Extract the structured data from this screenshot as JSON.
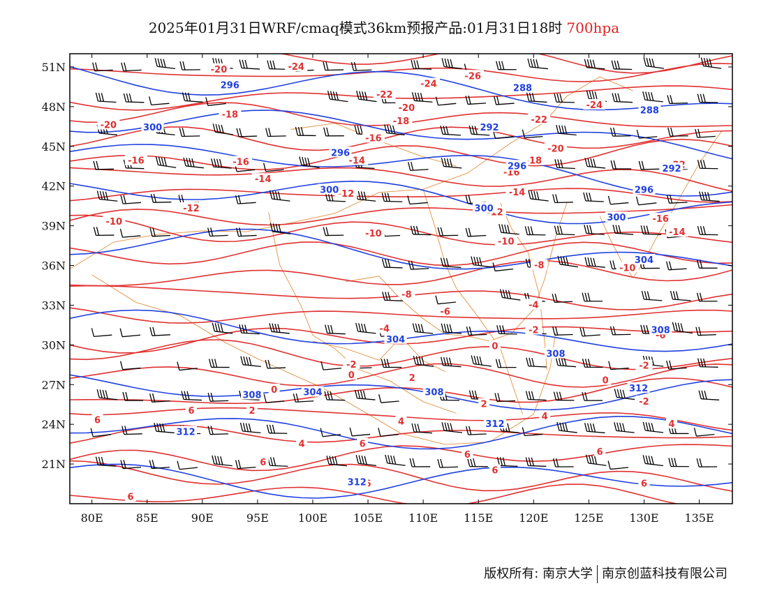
{
  "title": {
    "text": "2025年01月31日WRF/cmaq模式36km预报产品:01月31日18时",
    "level": "700hpa"
  },
  "colors": {
    "temperature": "#e03030",
    "height": "#2040e0",
    "border": "#e09040",
    "wind": "#000000"
  },
  "axes": {
    "lon": {
      "range": [
        78,
        138
      ],
      "ticks": [
        80,
        85,
        90,
        95,
        100,
        105,
        110,
        115,
        120,
        125,
        130,
        135
      ],
      "labels": [
        "80E",
        "85E",
        "90E",
        "95E",
        "100E",
        "105E",
        "110E",
        "115E",
        "120E",
        "125E",
        "130E",
        "135E"
      ]
    },
    "lat": {
      "range": [
        18,
        52
      ],
      "ticks": [
        21,
        24,
        27,
        30,
        33,
        36,
        39,
        42,
        45,
        48,
        51
      ],
      "labels": [
        "21N",
        "24N",
        "27N",
        "30N",
        "33N",
        "36N",
        "39N",
        "42N",
        "45N",
        "48N",
        "51N"
      ]
    }
  },
  "temperature_labels": [
    {
      "text": "-20",
      "lon": 91.5,
      "lat": 50.8
    },
    {
      "text": "-24",
      "lon": 98.5,
      "lat": 51.0
    },
    {
      "text": "-26",
      "lon": 114.5,
      "lat": 50.3
    },
    {
      "text": "-22",
      "lon": 106.5,
      "lat": 48.9
    },
    {
      "text": "-24",
      "lon": 110.5,
      "lat": 49.7
    },
    {
      "text": "-20",
      "lon": 81.5,
      "lat": 46.6
    },
    {
      "text": "-18",
      "lon": 92.5,
      "lat": 47.4
    },
    {
      "text": "-20",
      "lon": 108.5,
      "lat": 47.9
    },
    {
      "text": "-18",
      "lon": 108.0,
      "lat": 46.9
    },
    {
      "text": "-22",
      "lon": 120.5,
      "lat": 47.0
    },
    {
      "text": "-24",
      "lon": 125.5,
      "lat": 48.1
    },
    {
      "text": "-16",
      "lon": 84.0,
      "lat": 43.9
    },
    {
      "text": "-16",
      "lon": 93.5,
      "lat": 43.8
    },
    {
      "text": "-16",
      "lon": 105.5,
      "lat": 45.6
    },
    {
      "text": "-14",
      "lon": 104.0,
      "lat": 43.9
    },
    {
      "text": "-20",
      "lon": 122.0,
      "lat": 44.8
    },
    {
      "text": "-18",
      "lon": 120.0,
      "lat": 43.9
    },
    {
      "text": "-22",
      "lon": 133.0,
      "lat": 43.6
    },
    {
      "text": "-14",
      "lon": 95.5,
      "lat": 42.5
    },
    {
      "text": "-12",
      "lon": 103.0,
      "lat": 41.4
    },
    {
      "text": "-16",
      "lon": 118.0,
      "lat": 43.0
    },
    {
      "text": "-14",
      "lon": 118.5,
      "lat": 41.5
    },
    {
      "text": "-12",
      "lon": 89.0,
      "lat": 40.3
    },
    {
      "text": "-10",
      "lon": 82.0,
      "lat": 39.3
    },
    {
      "text": "-12",
      "lon": 116.5,
      "lat": 40.0
    },
    {
      "text": "-16",
      "lon": 131.5,
      "lat": 39.5
    },
    {
      "text": "-14",
      "lon": 133.0,
      "lat": 38.5
    },
    {
      "text": "-10",
      "lon": 105.5,
      "lat": 38.4
    },
    {
      "text": "-10",
      "lon": 117.5,
      "lat": 37.8
    },
    {
      "text": "-8",
      "lon": 120.5,
      "lat": 36.0
    },
    {
      "text": "-10",
      "lon": 128.5,
      "lat": 35.8
    },
    {
      "text": "-8",
      "lon": 108.5,
      "lat": 33.8
    },
    {
      "text": "-6",
      "lon": 112.0,
      "lat": 32.5
    },
    {
      "text": "-4",
      "lon": 120.0,
      "lat": 33.0
    },
    {
      "text": "-2",
      "lon": 120.0,
      "lat": 31.1
    },
    {
      "text": "-4",
      "lon": 106.5,
      "lat": 31.2
    },
    {
      "text": "-6",
      "lon": 131.5,
      "lat": 30.7
    },
    {
      "text": "0",
      "lon": 116.5,
      "lat": 29.9
    },
    {
      "text": "-2",
      "lon": 103.5,
      "lat": 28.5
    },
    {
      "text": "0",
      "lon": 103.5,
      "lat": 27.7
    },
    {
      "text": "-2",
      "lon": 130.0,
      "lat": 28.4
    },
    {
      "text": "2",
      "lon": 109.0,
      "lat": 27.5
    },
    {
      "text": "0",
      "lon": 126.5,
      "lat": 27.3
    },
    {
      "text": "0",
      "lon": 96.5,
      "lat": 26.6
    },
    {
      "text": "2",
      "lon": 94.5,
      "lat": 25.0
    },
    {
      "text": "-2",
      "lon": 130.0,
      "lat": 25.7
    },
    {
      "text": "2",
      "lon": 115.5,
      "lat": 25.5
    },
    {
      "text": "6",
      "lon": 80.5,
      "lat": 24.3
    },
    {
      "text": "6",
      "lon": 89.0,
      "lat": 25.0
    },
    {
      "text": "4",
      "lon": 108.0,
      "lat": 24.2
    },
    {
      "text": "4",
      "lon": 121.0,
      "lat": 24.6
    },
    {
      "text": "4",
      "lon": 132.5,
      "lat": 24.0
    },
    {
      "text": "4",
      "lon": 99.0,
      "lat": 22.5
    },
    {
      "text": "6",
      "lon": 104.5,
      "lat": 22.5
    },
    {
      "text": "6",
      "lon": 114.0,
      "lat": 21.7
    },
    {
      "text": "6",
      "lon": 126.0,
      "lat": 21.9
    },
    {
      "text": "6",
      "lon": 95.5,
      "lat": 21.1
    },
    {
      "text": "6",
      "lon": 116.5,
      "lat": 20.5
    },
    {
      "text": "6",
      "lon": 83.5,
      "lat": 18.5
    },
    {
      "text": "6",
      "lon": 105.0,
      "lat": 19.5
    },
    {
      "text": "6",
      "lon": 130.0,
      "lat": 19.5
    }
  ],
  "height_labels": [
    {
      "text": "296",
      "lon": 92.5,
      "lat": 49.6
    },
    {
      "text": "288",
      "lon": 119.0,
      "lat": 49.4
    },
    {
      "text": "300",
      "lon": 85.5,
      "lat": 46.4
    },
    {
      "text": "296",
      "lon": 102.5,
      "lat": 44.5
    },
    {
      "text": "292",
      "lon": 116.0,
      "lat": 46.4
    },
    {
      "text": "288",
      "lon": 130.5,
      "lat": 47.7
    },
    {
      "text": "296",
      "lon": 118.5,
      "lat": 43.5
    },
    {
      "text": "292",
      "lon": 132.5,
      "lat": 43.3
    },
    {
      "text": "300",
      "lon": 101.5,
      "lat": 41.7
    },
    {
      "text": "300",
      "lon": 115.5,
      "lat": 40.3
    },
    {
      "text": "296",
      "lon": 130.0,
      "lat": 41.7
    },
    {
      "text": "300",
      "lon": 127.5,
      "lat": 39.6
    },
    {
      "text": "304",
      "lon": 130.0,
      "lat": 36.4
    },
    {
      "text": "304",
      "lon": 107.5,
      "lat": 30.4
    },
    {
      "text": "308",
      "lon": 122.0,
      "lat": 29.3
    },
    {
      "text": "308",
      "lon": 131.5,
      "lat": 31.1
    },
    {
      "text": "308",
      "lon": 94.5,
      "lat": 26.2
    },
    {
      "text": "304",
      "lon": 100.0,
      "lat": 26.4
    },
    {
      "text": "308",
      "lon": 111.0,
      "lat": 26.4
    },
    {
      "text": "312",
      "lon": 129.5,
      "lat": 26.7
    },
    {
      "text": "312",
      "lon": 88.5,
      "lat": 23.4
    },
    {
      "text": "312",
      "lon": 116.5,
      "lat": 24.0
    },
    {
      "text": "312",
      "lon": 104.0,
      "lat": 19.6
    }
  ],
  "footer": {
    "copyright": "版权所有: 南京大学",
    "company": "南京创蓝科技有限公司"
  }
}
